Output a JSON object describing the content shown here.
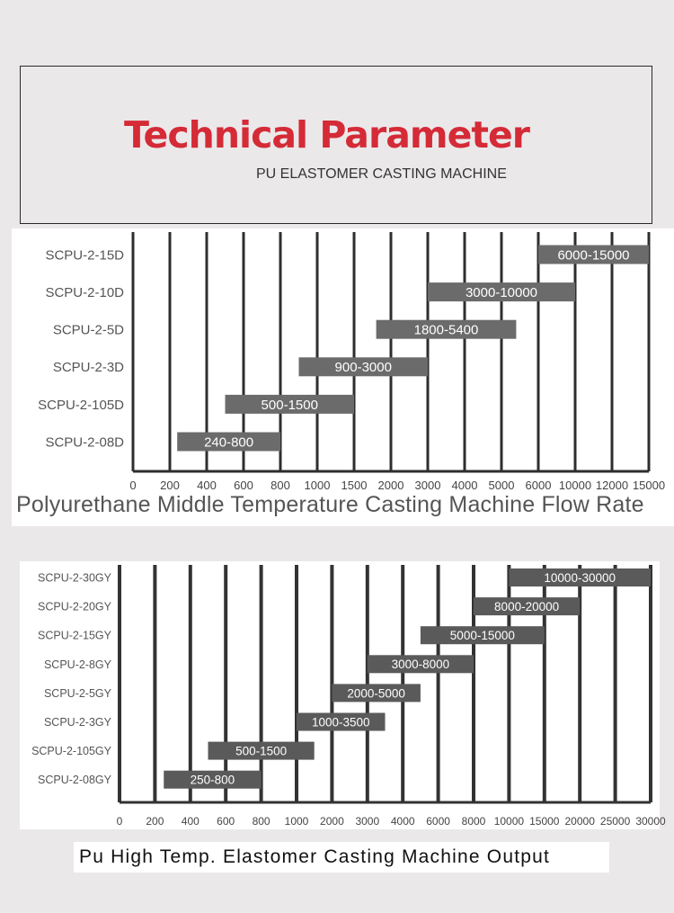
{
  "header": {
    "title": "Technical Parameter",
    "subtitle": "PU ELASTOMER CASTING MACHINE"
  },
  "chart_data": [
    {
      "type": "bar",
      "orientation": "horizontal",
      "title": "Polyurethane Middle Temperature Casting Machine Flow Rate",
      "categories": [
        "SCPU-2-15D",
        "SCPU-2-10D",
        "SCPU-2-5D",
        "SCPU-2-3D",
        "SCPU-2-105D",
        "SCPU-2-08D"
      ],
      "ranges": [
        [
          6000,
          15000
        ],
        [
          3000,
          10000
        ],
        [
          1800,
          5400
        ],
        [
          900,
          3000
        ],
        [
          500,
          1500
        ],
        [
          240,
          800
        ]
      ],
      "range_labels": [
        "6000-15000",
        "3000-10000",
        "1800-5400",
        "900-3000",
        "500-1500",
        "240-800"
      ],
      "x_ticks": [
        "0",
        "200",
        "400",
        "600",
        "800",
        "1000",
        "1500",
        "2000",
        "3000",
        "4000",
        "5000",
        "6000",
        "10000",
        "12000",
        "15000"
      ],
      "grid": true,
      "colors": {
        "bar": "#6b6b6b",
        "grid": "#2e2e2e"
      }
    },
    {
      "type": "bar",
      "orientation": "horizontal",
      "title": "Pu High Temp. Elastomer Casting Machine Output",
      "categories": [
        "SCPU-2-30GY",
        "SCPU-2-20GY",
        "SCPU-2-15GY",
        "SCPU-2-8GY",
        "SCPU-2-5GY",
        "SCPU-2-3GY",
        "SCPU-2-105GY",
        "SCPU-2-08GY"
      ],
      "ranges": [
        [
          10000,
          30000
        ],
        [
          8000,
          20000
        ],
        [
          5000,
          15000
        ],
        [
          3000,
          8000
        ],
        [
          2000,
          5000
        ],
        [
          1000,
          3500
        ],
        [
          500,
          1500
        ],
        [
          250,
          800
        ]
      ],
      "range_labels": [
        "10000-30000",
        "8000-20000",
        "5000-15000",
        "3000-8000",
        "2000-5000",
        "1000-3500",
        "500-1500",
        "250-800"
      ],
      "x_ticks": [
        "0",
        "200",
        "400",
        "600",
        "800",
        "1000",
        "2000",
        "3000",
        "4000",
        "6000",
        "8000",
        "10000",
        "15000",
        "20000",
        "25000",
        "30000"
      ],
      "grid": true,
      "colors": {
        "bar": "#5a5a5a",
        "grid": "#333333"
      }
    }
  ]
}
